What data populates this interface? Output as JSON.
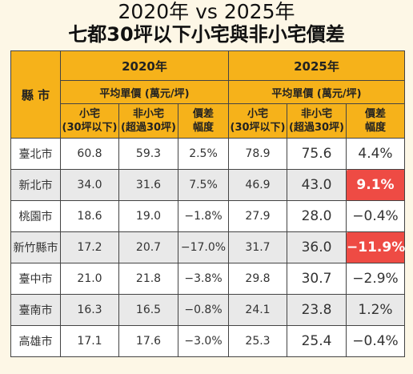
{
  "title_line1": "2020年 vs 2025年",
  "title_line2": "七都30坪以下小宅與非小宅價差",
  "table": {
    "county_header": "縣 市",
    "year_2020": "2020年",
    "year_2025": "2025年",
    "avg_price_header": "平均單價 (萬元/坪)",
    "col_small_l1": "小宅",
    "col_small_l2": "(30坪以下)",
    "col_nonsmall_l1": "非小宅",
    "col_nonsmall_l2": "(超過30坪)",
    "col_diff_l1": "價差",
    "col_diff_l2": "幅度",
    "rows": [
      {
        "city": "臺北市",
        "s2020": "60.8",
        "n2020": "59.3",
        "d2020": "2.5%",
        "s2025": "78.9",
        "n2025": "75.6",
        "d2025": "4.4%",
        "highlight": false
      },
      {
        "city": "新北市",
        "s2020": "34.0",
        "n2020": "31.6",
        "d2020": "7.5%",
        "s2025": "46.9",
        "n2025": "43.0",
        "d2025": "9.1%",
        "highlight": true
      },
      {
        "city": "桃園市",
        "s2020": "18.6",
        "n2020": "19.0",
        "d2020": "−1.8%",
        "s2025": "27.9",
        "n2025": "28.0",
        "d2025": "−0.4%",
        "highlight": false
      },
      {
        "city": "新竹縣市",
        "s2020": "17.2",
        "n2020": "20.7",
        "d2020": "−17.0%",
        "s2025": "31.7",
        "n2025": "36.0",
        "d2025": "−11.9%",
        "highlight": true
      },
      {
        "city": "臺中市",
        "s2020": "21.0",
        "n2020": "21.8",
        "d2020": "−3.8%",
        "s2025": "29.8",
        "n2025": "30.7",
        "d2025": "−2.9%",
        "highlight": false
      },
      {
        "city": "臺南市",
        "s2020": "16.3",
        "n2020": "16.5",
        "d2020": "−0.8%",
        "s2025": "24.1",
        "n2025": "23.8",
        "d2025": "1.2%",
        "highlight": false
      },
      {
        "city": "高雄市",
        "s2020": "17.1",
        "n2020": "17.6",
        "d2020": "−3.0%",
        "s2025": "25.3",
        "n2025": "25.4",
        "d2025": "−0.4%",
        "highlight": false
      }
    ]
  },
  "colors": {
    "background": "#fdf7e6",
    "header": "#f6b21a",
    "highlight": "#ee4b44",
    "row_alt": "#e9e9e9"
  }
}
